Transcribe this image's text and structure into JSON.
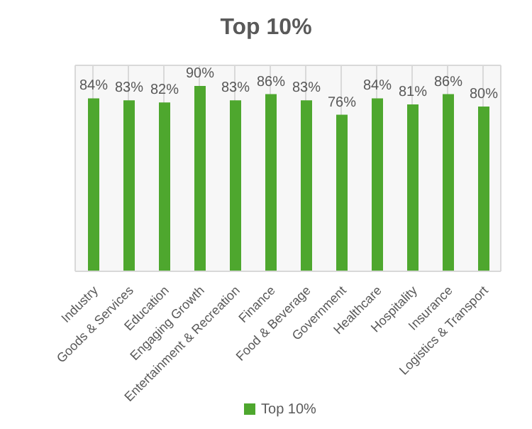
{
  "chart_data": {
    "type": "bar",
    "title": "Top 10%",
    "categories": [
      "Industry",
      "Goods & Services",
      "Education",
      "Engaging Growth",
      "Entertainment & Recreation",
      "Finance",
      "Food & Beverage",
      "Government",
      "Healthcare",
      "Hospitality",
      "Insurance",
      "Logistics & Transport"
    ],
    "series": [
      {
        "name": "Top 10%",
        "color": "#4ea72e",
        "values": [
          84,
          83,
          82,
          90,
          83,
          86,
          83,
          76,
          84,
          81,
          86,
          80
        ],
        "value_labels": [
          "84%",
          "83%",
          "82%",
          "90%",
          "83%",
          "86%",
          "83%",
          "76%",
          "84%",
          "81%",
          "86%",
          "80%"
        ]
      }
    ],
    "tick_labels": "x",
    "grid": true,
    "legend": "bottom"
  }
}
